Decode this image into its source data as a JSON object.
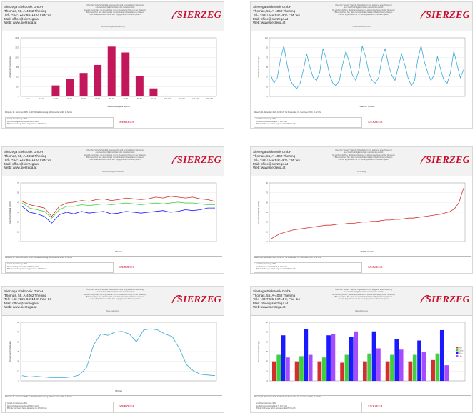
{
  "company": {
    "name": "Sierzega Elektronik GmbH",
    "address": "Thomas, 55, A-4062 Thening",
    "phone": "Tel.: +43-7221-64714-0, Fax -14",
    "mail": "Mail: office@sierzega.at",
    "web": "Web: www.sierzega.at"
  },
  "logo_text": "SIERZEGA",
  "footer_logo": "SIERZEGA",
  "colors": {
    "logo": "#c8102e",
    "bar_magenta": "#c2185b",
    "line_cyan": "#3aa9d4",
    "red": "#d32f2f",
    "green": "#3fcf3f",
    "blue": "#1a1aff",
    "purple": "#a64cff"
  },
  "notice_lines": [
    "Über den Verkehr Statistik Tagesbericht wird aufgrund einer Messung",
    "aus Geschwindigkeits-Daten des Geräts erstellt",
    "Es wird empfohlen, die Ergebnisse nur im Zusammenhang mit der Messung",
    "Bitte beachten Sie, dass Geräte Verkehrsdaten (Radardaten) erfassen",
    "und die Ergebnisse nur für den angegebenen Zeitraum gelten"
  ],
  "reports": [
    {
      "subtitle": "Geschwindigkeitsverteilung",
      "xlabel": "Geschwindigkeit (km/h)",
      "ylabel": "Anzahl der Fahrzeuge",
      "footer_period": "Mittwoch, 01. Dezember 2020, 11:32 Uhr bis Donnerstag, 02. Dezember 2020, 11:32 Uhr",
      "footer_rows": [
        "Anzahl der Fahrzeuge 3831",
        "Durchschnittsgeschwindigkeit 74 40,0 km/h",
        "85% der Fahrzeuge fahren langsamer als 105 53 km/h"
      ]
    },
    {
      "subtitle": "Verkehrsaufkommen",
      "xlabel": "Datum / Uhrzeit",
      "ylabel": "Anzahl der Fahrzeuge",
      "footer_period": "Mittwoch, 01. Dezember 2020, 11:32 Uhr bis Donnerstag, 02. Dezember 2020, 11:32 Uhr",
      "footer_rows": [
        "Anzahl der Fahrzeuge 3831",
        "Durchschnittsgeschwindigkeit 74 40,0 km/h",
        "85% der Fahrzeuge fahren langsamer als 105 53 km/h"
      ]
    },
    {
      "subtitle": "Geschwindigkeitsverlauf",
      "xlabel": "Uhrzeit",
      "ylabel": "Geschwindigkeit (km/h)",
      "footer_period": "Mittwoch, 01. Dezember 2020, 11:32 Uhr bis Donnerstag, 02. Dezember 2020, 11:32 Uhr",
      "footer_rows": [
        "Anzahl der Fahrzeuge 3831",
        "Durchschnittsgeschwindigkeit 74 40,0 km/h",
        "85% der Fahrzeuge fahren langsamer als 105 53 km/h"
      ]
    },
    {
      "subtitle": "Verteilung",
      "xlabel": "V% Perzentile",
      "ylabel": "Geschwindigkeit (km/h)",
      "footer_period": "Mittwoch, 01. Dezember 2020, 11:32 Uhr bis Donnerstag, 02. Dezember 2020, 11:32 Uhr",
      "footer_rows": [
        "Anzahl der Fahrzeuge 3831",
        "Durchschnittsgeschwindigkeit 74 40,0 km/h",
        "85% der Fahrzeuge fahren langsamer als 105 53 km/h"
      ]
    },
    {
      "subtitle": "Tagesganglinie",
      "xlabel": "Uhrzeit",
      "ylabel": "Anzahl der Fahrzeuge",
      "footer_period": "Mittwoch, 01. Dezember 2020, 11:32 Uhr bis Donnerstag, 02. Dezember 2020, 11:32 Uhr",
      "footer_rows": [
        "Anzahl der Fahrzeuge 3831",
        "Durchschnittsgeschwindigkeit 74 40,0 km/h",
        "85% der Fahrzeuge fahren langsamer als 105 53 km/h"
      ]
    },
    {
      "subtitle": "Klassifizierung",
      "xlabel": "",
      "ylabel": "Anzahl der Fahrzeuge",
      "footer_period": "Mittwoch, 01. Dezember 2020, 11:32 Uhr bis Donnerstag, 02. Dezember 2020, 11:32 Uhr",
      "footer_rows": [
        "Anzahl der Fahrzeuge 3831",
        "Durchschnittsgeschwindigkeit 74 40,0 km/h",
        "85% der Fahrzeuge fahren langsamer als 105 53 km/h"
      ]
    }
  ],
  "chart_data": [
    {
      "type": "bar",
      "categories": [
        "0-10",
        "10-20",
        "20-30",
        "30-40",
        "40-50",
        "50-60",
        "60-70",
        "70-80",
        "80-90",
        "90-100",
        "100-110",
        "110-120",
        "120-130",
        "130-140"
      ],
      "values": [
        0,
        0,
        300,
        470,
        640,
        860,
        1360,
        1200,
        550,
        220,
        20,
        5,
        0,
        0
      ],
      "ylim": [
        0,
        1600
      ]
    },
    {
      "type": "line",
      "values": [
        40,
        25,
        35,
        70,
        95,
        60,
        30,
        20,
        15,
        25,
        50,
        80,
        55,
        35,
        30,
        45,
        90,
        70,
        40,
        25,
        20,
        30,
        60,
        85,
        65,
        40,
        30,
        50,
        95,
        75,
        45,
        30,
        25,
        35,
        70,
        90,
        60,
        40,
        30,
        55,
        80,
        60,
        35,
        20,
        30,
        70,
        95,
        65,
        45,
        30,
        40,
        75,
        50,
        30,
        25,
        45,
        85,
        60,
        35,
        50
      ],
      "ylim": [
        0,
        110
      ]
    },
    {
      "type": "line",
      "series": [
        {
          "color": "red",
          "values": [
            48,
            44,
            42,
            40,
            30,
            42,
            46,
            47,
            49,
            48,
            50,
            51,
            49,
            50,
            52,
            51,
            50,
            51,
            53,
            52,
            54,
            53,
            52,
            53,
            51,
            50,
            48
          ]
        },
        {
          "color": "green",
          "values": [
            46,
            40,
            38,
            36,
            28,
            38,
            42,
            42,
            44,
            43,
            44,
            45,
            44,
            45,
            46,
            45,
            44,
            45,
            46,
            45,
            46,
            47,
            46,
            46,
            45,
            44,
            44
          ]
        },
        {
          "color": "blue",
          "values": [
            42,
            35,
            33,
            30,
            22,
            32,
            35,
            33,
            36,
            34,
            35,
            36,
            33,
            34,
            36,
            35,
            34,
            35,
            36,
            37,
            35,
            36,
            38,
            37,
            38,
            40,
            40
          ]
        }
      ],
      "ylim": [
        0,
        70
      ]
    },
    {
      "type": "line",
      "values": [
        4,
        8,
        12,
        14,
        16,
        18,
        19,
        20,
        21,
        22,
        23,
        24,
        25,
        25,
        26,
        27,
        27,
        28,
        28,
        29,
        30,
        30,
        31,
        31,
        32,
        33,
        33,
        34,
        34,
        35,
        36,
        36,
        37,
        38,
        39,
        40,
        41,
        42,
        44,
        46,
        50,
        60,
        82
      ],
      "ylim": [
        0,
        90
      ]
    },
    {
      "type": "line",
      "values": [
        8,
        6,
        7,
        6,
        5,
        5,
        5,
        6,
        9,
        20,
        55,
        72,
        70,
        75,
        76,
        72,
        60,
        78,
        80,
        78,
        72,
        68,
        50,
        25,
        15,
        10,
        9,
        8
      ],
      "ylim": [
        0,
        90
      ]
    },
    {
      "type": "bar",
      "categories": [
        "1",
        "2",
        "3",
        "4",
        "5",
        "6",
        "7",
        "8"
      ],
      "series": [
        {
          "name": "Rot",
          "color": "red",
          "values": [
            30,
            30,
            30,
            28,
            30,
            30,
            30,
            32
          ]
        },
        {
          "name": "Grün",
          "color": "green",
          "values": [
            40,
            38,
            36,
            40,
            42,
            40,
            40,
            42
          ]
        },
        {
          "name": "Blau",
          "color": "blue",
          "values": [
            70,
            80,
            70,
            68,
            76,
            64,
            62,
            78
          ]
        },
        {
          "name": "Lila",
          "color": "purple",
          "values": [
            36,
            40,
            72,
            76,
            50,
            48,
            45,
            24
          ]
        }
      ],
      "ylim": [
        0,
        90
      ]
    }
  ]
}
